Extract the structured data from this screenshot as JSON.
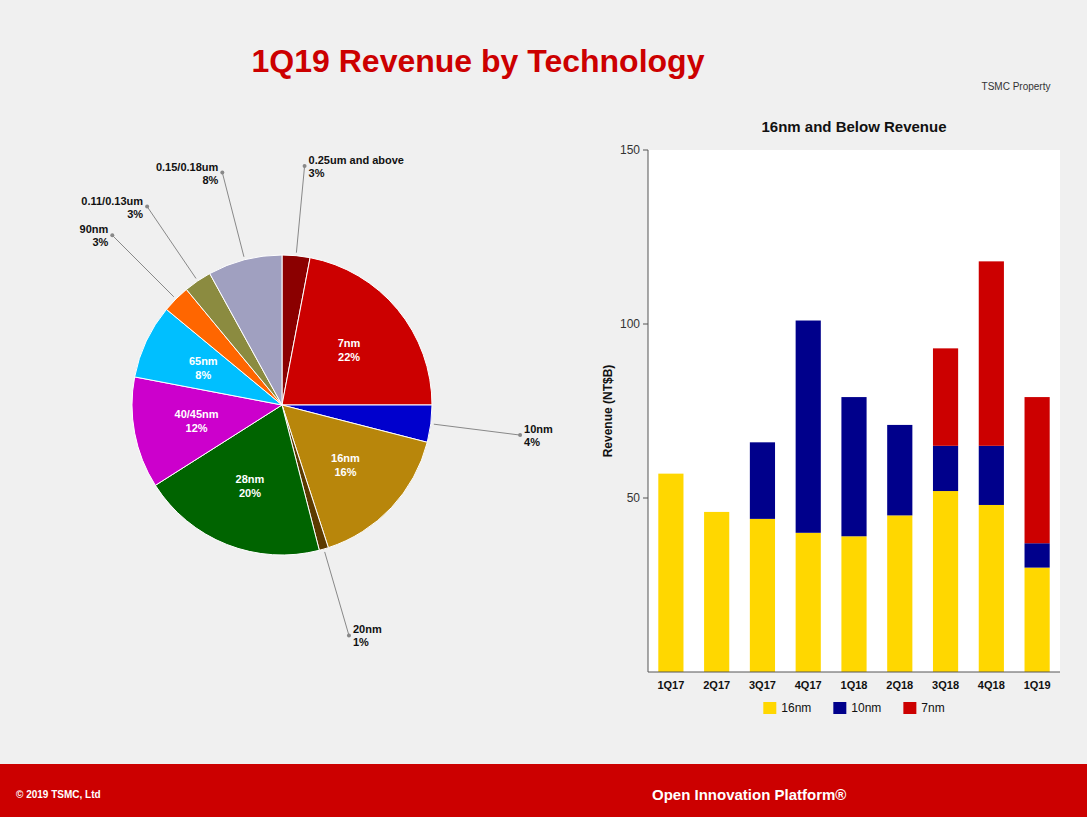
{
  "chart_data": [
    {
      "type": "pie",
      "title": "1Q19 Revenue by Technology",
      "categories": [
        "0.25um and above",
        "7nm",
        "10nm",
        "16nm",
        "20nm",
        "28nm",
        "40/45nm",
        "65nm",
        "90nm",
        "0.11/0.13um",
        "0.15/0.18um"
      ],
      "values": [
        3,
        22,
        4,
        16,
        1,
        20,
        12,
        8,
        3,
        3,
        8
      ],
      "value_labels": [
        "3%",
        "22%",
        "4%",
        "16%",
        "1%",
        "20%",
        "12%",
        "8%",
        "3%",
        "3%",
        "8%"
      ],
      "colors": [
        "#8B0000",
        "#CC0000",
        "#0000CD",
        "#B8860B",
        "#5C3A00",
        "#006400",
        "#CC00CC",
        "#00BFFF",
        "#FF6600",
        "#8B8B40",
        "#A0A0C0"
      ],
      "data_labels": true,
      "annotations": [
        "TSMC Property",
        "© 2019 TSMC, Ltd",
        "Open Innovation Platform®"
      ]
    },
    {
      "type": "bar",
      "title": "16nm and Below Revenue",
      "categories": [
        "1Q17",
        "2Q17",
        "3Q17",
        "4Q17",
        "1Q18",
        "2Q18",
        "3Q18",
        "4Q18",
        "1Q19"
      ],
      "series": [
        {
          "name": "16nm",
          "color": "#FFD700",
          "values": [
            57,
            46,
            44,
            40,
            39,
            45,
            52,
            48,
            30
          ]
        },
        {
          "name": "10nm",
          "color": "#00008B",
          "values": [
            0,
            0,
            22,
            61,
            40,
            26,
            13,
            17,
            7
          ]
        },
        {
          "name": "7nm",
          "color": "#CC0000",
          "values": [
            0,
            0,
            0,
            0,
            0,
            0,
            28,
            53,
            42
          ]
        }
      ],
      "stacked": true,
      "ylabel": "Revenue (NT$B)",
      "ylim": [
        0,
        150
      ],
      "yticks": [
        50,
        100,
        150
      ],
      "grid": false,
      "legend": "bottom"
    }
  ]
}
